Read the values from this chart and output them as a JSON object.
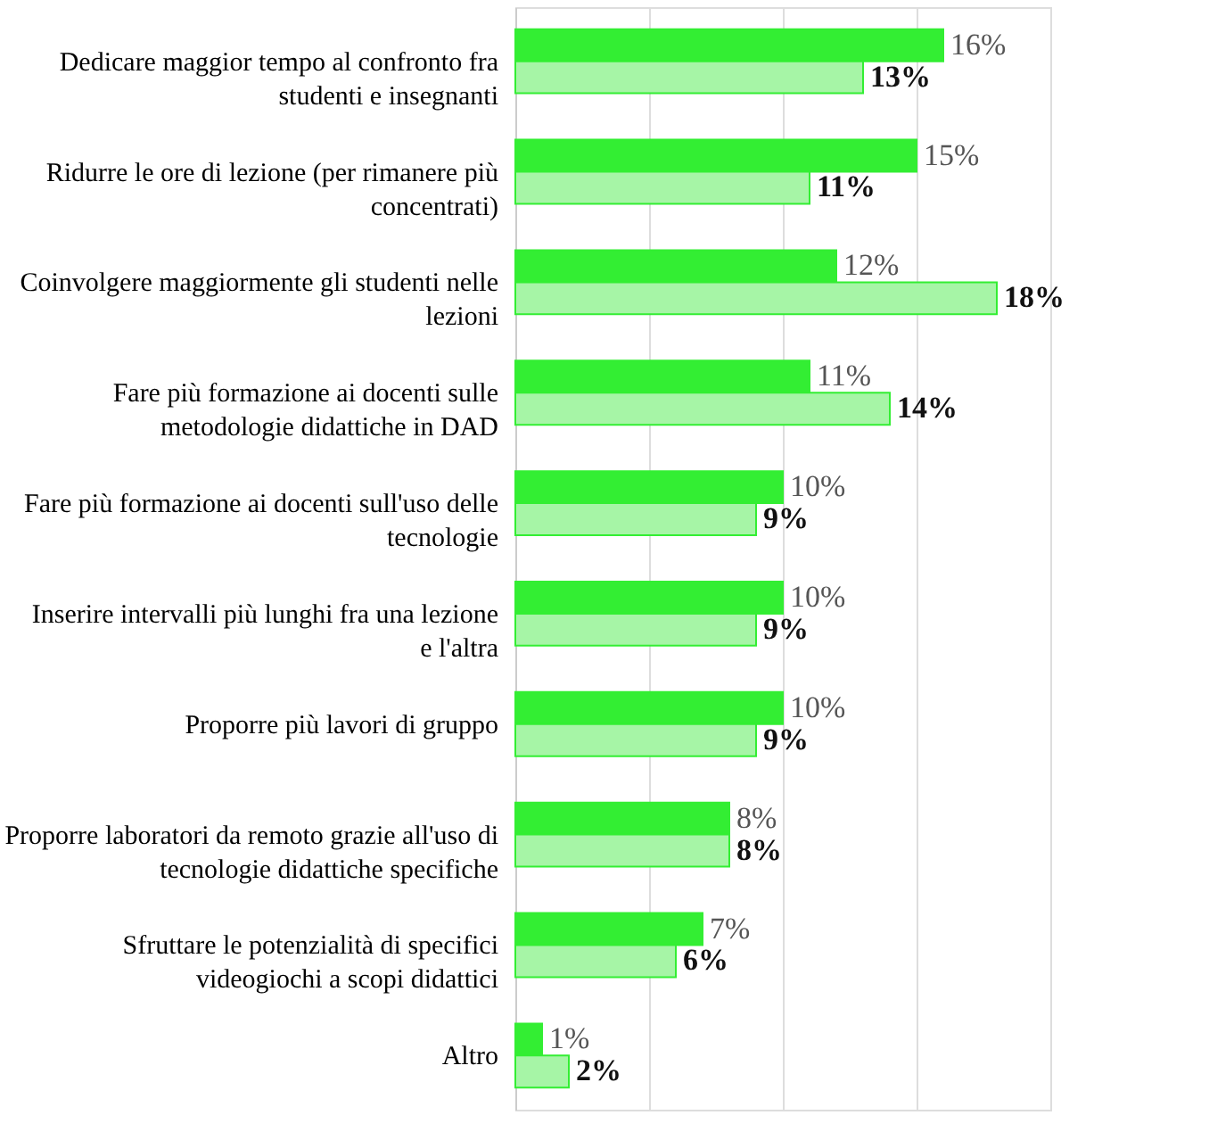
{
  "chart_data": {
    "type": "bar",
    "orientation": "horizontal",
    "categories": [
      "Dedicare maggior tempo al confronto fra studenti e insegnanti",
      "Ridurre le ore di lezione (per rimanere più concentrati)",
      "Coinvolgere maggiormente gli studenti nelle lezioni",
      "Fare più formazione ai docenti sulle metodologie didattiche in DAD",
      "Fare più formazione ai docenti sull'uso delle tecnologie",
      "Inserire intervalli più lunghi fra una lezione e l'altra",
      "Proporre più lavori di gruppo",
      "Proporre laboratori da remoto grazie all'uso di tecnologie didattiche specifiche",
      "Sfruttare le potenzialità di specifici videogiochi a scopi didattici",
      "Altro"
    ],
    "series": [
      {
        "color": "#33ee33",
        "values": [
          16,
          15,
          12,
          11,
          10,
          10,
          10,
          8,
          7,
          1
        ],
        "value_labels": [
          "16%",
          "15%",
          "12%",
          "11%",
          "10%",
          "10%",
          "10%",
          "8%",
          "7%",
          "1%"
        ]
      },
      {
        "color": "#a6f5a6",
        "values": [
          13,
          11,
          18,
          14,
          9,
          9,
          9,
          8,
          6,
          2
        ],
        "value_labels": [
          "13%",
          "11%",
          "18%",
          "14%",
          "9%",
          "9%",
          "9%",
          "8%",
          "6%",
          "2%"
        ]
      }
    ],
    "xlim": [
      0,
      20
    ],
    "xticks": [
      {
        "value": 0,
        "label": null
      },
      {
        "value": 5,
        "label": null
      },
      {
        "value": 10,
        "label": null
      },
      {
        "value": 15,
        "label": null
      },
      {
        "value": 20,
        "label": null
      }
    ],
    "grid": "x",
    "tick_labels": "y"
  }
}
